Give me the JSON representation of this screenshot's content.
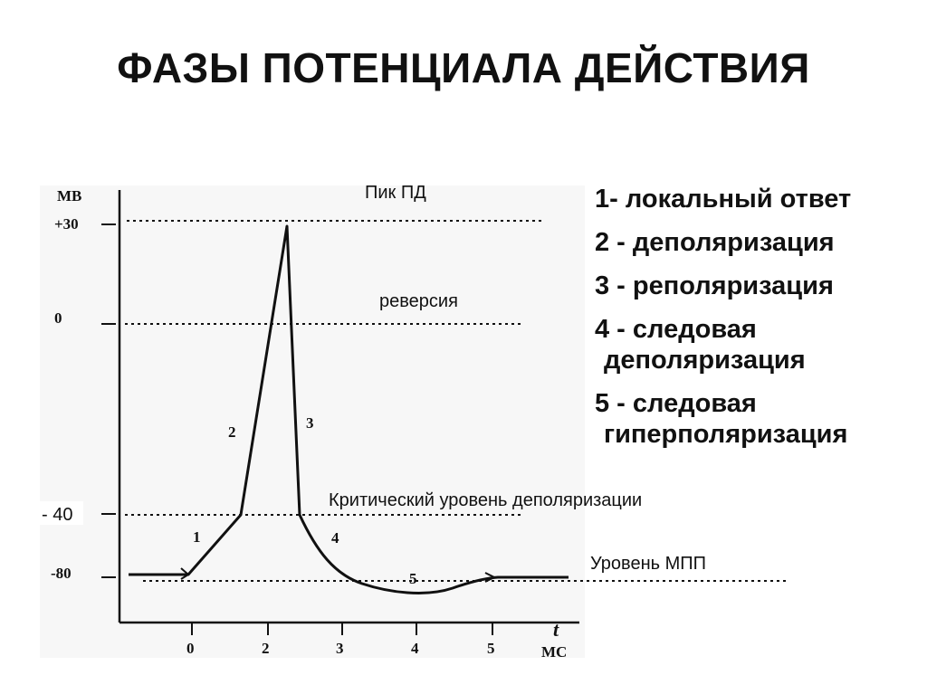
{
  "title": "ФАЗЫ ПОТЕНЦИАЛА ДЕЙСТВИЯ",
  "diagram": {
    "y_unit": "МВ",
    "x_unit_t": "t",
    "x_unit": "МС",
    "y_ticks": [
      "+30",
      "0",
      "- 40",
      "-80"
    ],
    "x_ticks": [
      "0",
      "2",
      "3",
      "4",
      "5"
    ],
    "labels": {
      "peak": "Пик ПД",
      "reversal": "реверсия",
      "critical": "Критический уровень деполяризации",
      "rmp": "Уровень МПП"
    },
    "phase_numbers": [
      "1",
      "2",
      "3",
      "4",
      "5"
    ]
  },
  "legend": [
    {
      "line1": "1- локальный ответ",
      "line2": ""
    },
    {
      "line1": "2 - деполяризация",
      "line2": ""
    },
    {
      "line1": "3 - реполяризация",
      "line2": ""
    },
    {
      "line1": "4 - следовая",
      "line2": "деполяризация"
    },
    {
      "line1": "5 - следовая",
      "line2": "гиперполяризация"
    }
  ],
  "colors": {
    "ink": "#111111",
    "background": "#ffffff"
  }
}
